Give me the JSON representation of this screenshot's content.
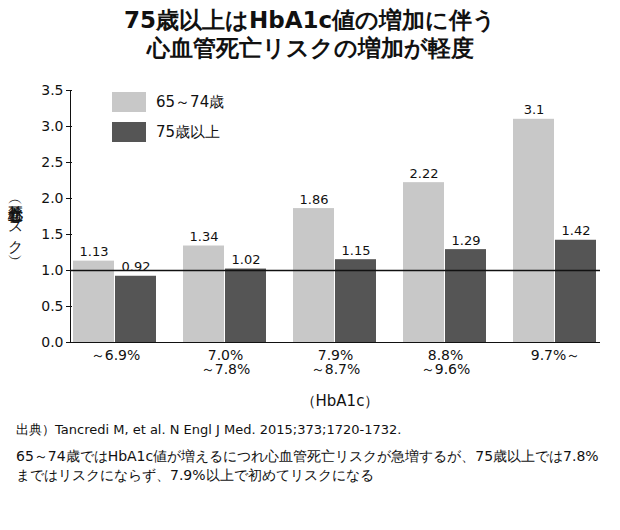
{
  "chart_data": {
    "type": "bar",
    "title": "75歳以上はHbA1c値の増加に伴う\n心血管死亡リスクの増加が軽度",
    "y_label": "（心血管死亡リスク）",
    "x_label": "（HbA1c）",
    "source": "出典）Tancredi M, et al. N Engl J Med. 2015;373;1720-1732.",
    "caption": "65～74歳ではHbA1c値が増えるにつれ心血管死亡リスクが急増するが、75歳以上では7.8%まではリスクにならず、7.9%以上で初めてリスクになる",
    "categories": [
      "～6.9%",
      "7.0%\n～7.8%",
      "7.9%\n～8.7%",
      "8.8%\n～9.6%",
      "9.7%～"
    ],
    "series": [
      {
        "name": "65～74歳",
        "color": "#c8c8c8",
        "values": [
          1.13,
          1.34,
          1.86,
          2.22,
          3.1
        ]
      },
      {
        "name": "75歳以上",
        "color": "#555555",
        "values": [
          0.92,
          1.02,
          1.15,
          1.29,
          1.42
        ]
      }
    ],
    "ylim": [
      0,
      3.5
    ],
    "yticks": [
      {
        "value": 0,
        "label": "0.0"
      },
      {
        "value": 0.5,
        "label": "0.5"
      },
      {
        "value": 1,
        "label": "1.0"
      },
      {
        "value": 1.5,
        "label": "1.5"
      },
      {
        "value": 2,
        "label": "2.0"
      },
      {
        "value": 2.5,
        "label": "2.5"
      },
      {
        "value": 3,
        "label": "3.0"
      },
      {
        "value": 3.5,
        "label": "3.5"
      }
    ],
    "reference_line": 1,
    "grid": false,
    "legend": "top-left",
    "data_labels": true
  }
}
